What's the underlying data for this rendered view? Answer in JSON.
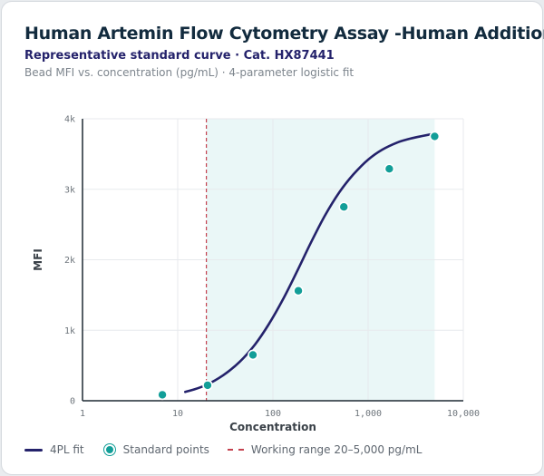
{
  "header": {
    "title": "Human Artemin Flow Cytometry Assay -Human Additional",
    "subtitle": "Representative standard curve · Cat. HX87441",
    "description": "Bead MFI vs. concentration (pg/mL) · 4-parameter logistic fit"
  },
  "legend": {
    "fit_label": "4PL fit",
    "points_label": "Standard points",
    "range_label": "Working range 20–5,000 pg/mL"
  },
  "colors": {
    "fit": "#24226b",
    "points": "#129e98",
    "range_marker": "#c4404e",
    "range_shade": "#eaf7f7"
  },
  "chart_data": {
    "type": "scatter",
    "xlabel": "Concentration",
    "ylabel": "MFI",
    "x_scale": "log",
    "xlim": [
      1,
      10000
    ],
    "ylim": [
      0,
      4000
    ],
    "x_ticks": [
      1,
      10,
      100,
      1000,
      10000
    ],
    "x_tick_labels": [
      "1",
      "10",
      "100",
      "1,000",
      "10,000"
    ],
    "y_ticks": [
      0,
      1000,
      2000,
      3000,
      4000
    ],
    "y_tick_labels": [
      "0",
      "1k",
      "2k",
      "3k",
      "4k"
    ],
    "grid": true,
    "working_range": [
      20,
      5000
    ],
    "series": [
      {
        "name": "Standard points",
        "x": [
          6.9,
          20.6,
          61.7,
          185,
          556,
          1670,
          5000
        ],
        "y": [
          85,
          220,
          650,
          1560,
          2750,
          3290,
          3750
        ]
      },
      {
        "name": "4PL fit",
        "x": [
          12,
          15,
          20,
          30,
          45,
          65,
          90,
          130,
          180,
          250,
          350,
          500,
          700,
          1000,
          1400,
          2000,
          2800,
          3700,
          5000
        ],
        "y": [
          125,
          162,
          225,
          362,
          555,
          800,
          1080,
          1460,
          1840,
          2240,
          2620,
          2960,
          3210,
          3420,
          3560,
          3660,
          3720,
          3755,
          3790
        ]
      }
    ]
  }
}
